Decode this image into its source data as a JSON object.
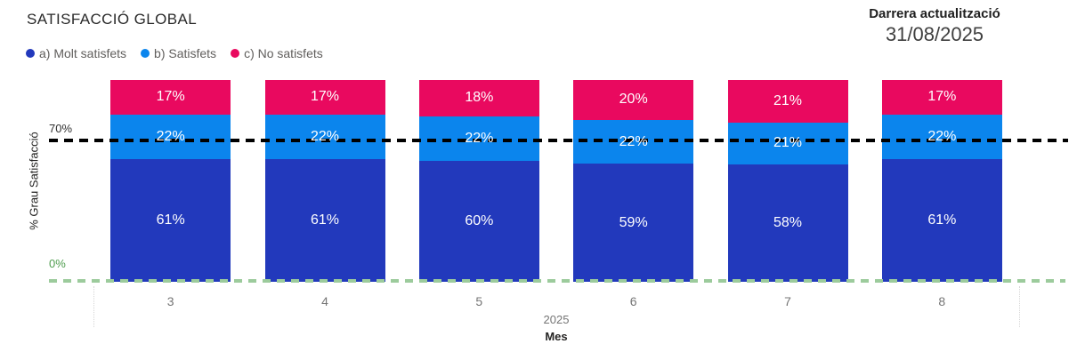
{
  "header": {
    "title": "SATISFACCIÓ GLOBAL",
    "updated_label": "Darrera actualització",
    "updated_date": "31/08/2025"
  },
  "legend": [
    {
      "label": "a) Molt satisfets",
      "color": "#2239BC"
    },
    {
      "label": "b) Satisfets",
      "color": "#0B85ED"
    },
    {
      "label": "c) No satisfets",
      "color": "#E9095F"
    }
  ],
  "chart_data": {
    "type": "bar",
    "stacked": true,
    "stacked_percent": true,
    "categories": [
      "3",
      "4",
      "5",
      "6",
      "7",
      "8"
    ],
    "series": [
      {
        "name": "a) Molt satisfets",
        "color": "#2239BC",
        "values": [
          61,
          61,
          60,
          59,
          58,
          61
        ]
      },
      {
        "name": "b) Satisfets",
        "color": "#0B85ED",
        "values": [
          22,
          22,
          22,
          22,
          21,
          22
        ]
      },
      {
        "name": "c) No satisfets",
        "color": "#E9095F",
        "values": [
          17,
          17,
          18,
          20,
          21,
          17
        ]
      }
    ],
    "data_label_suffix": "%",
    "xlabel": "Mes",
    "x_group_label": "2025",
    "ylabel": "% Grau Satisfacció",
    "ylim": [
      0,
      100
    ],
    "legend_position": "top-left",
    "grid": false,
    "reference_lines": [
      {
        "label": "70%",
        "value": 70,
        "style": "dotted",
        "color": "#000000"
      },
      {
        "label": "0%",
        "value": 0,
        "style": "dashed",
        "color": "#9CCB9C"
      }
    ]
  }
}
